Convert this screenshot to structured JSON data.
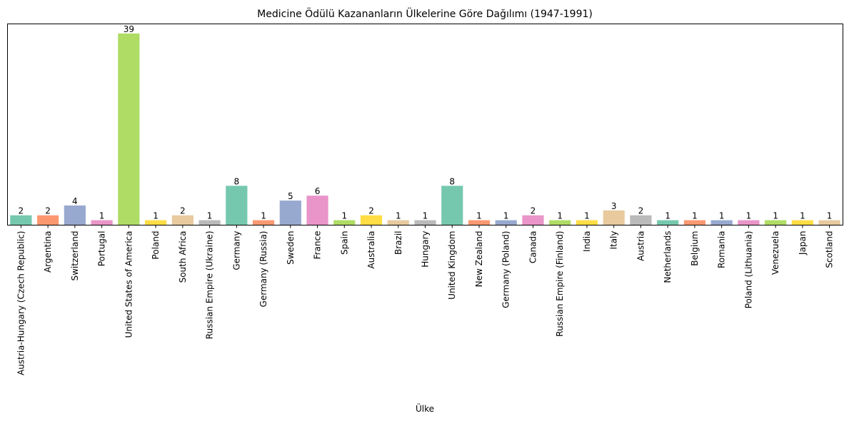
{
  "chart_data": {
    "type": "bar",
    "title": "Medicine Ödülü Kazananların Ülkelerine Göre Dağılımı (1947-1991)",
    "xlabel": "Ülke",
    "ylabel": "",
    "ylim": [
      0,
      40.95
    ],
    "grid": false,
    "categories": [
      "Austria-Hungary (Czech Republic)",
      "Argentina",
      "Switzerland",
      "Portugal",
      "United States of America",
      "Poland",
      "South Africa",
      "Russian Empire (Ukraine)",
      "Germany",
      "Germany (Russia)",
      "Sweden",
      "France",
      "Spain",
      "Australia",
      "Brazil",
      "Hungary",
      "United Kingdom",
      "New Zealand",
      "Germany (Poland)",
      "Canada",
      "Russian Empire (Finland)",
      "India",
      "Italy",
      "Austria",
      "Netherlands",
      "Belgium",
      "Romania",
      "Poland (Lithuania)",
      "Venezuela",
      "Japan",
      "Scotland"
    ],
    "values": [
      2,
      2,
      4,
      1,
      39,
      1,
      2,
      1,
      8,
      1,
      5,
      6,
      1,
      2,
      1,
      1,
      8,
      1,
      1,
      2,
      1,
      1,
      3,
      2,
      1,
      1,
      1,
      1,
      1,
      1,
      1
    ],
    "data_labels": [
      "2",
      "2",
      "4",
      "1",
      "39",
      "1",
      "2",
      "1",
      "8",
      "1",
      "5",
      "6",
      "1",
      "2",
      "1",
      "1",
      "8",
      "1",
      "1",
      "2",
      "1",
      "1",
      "3",
      "2",
      "1",
      "1",
      "1",
      "1",
      "1",
      "1",
      "1"
    ],
    "palette": [
      "#66c2a5",
      "#fc8d62",
      "#8da0cb",
      "#e78ac3",
      "#a6d854",
      "#ffd92f",
      "#e5c494",
      "#b3b3b3"
    ],
    "bar_alpha": 0.9
  }
}
